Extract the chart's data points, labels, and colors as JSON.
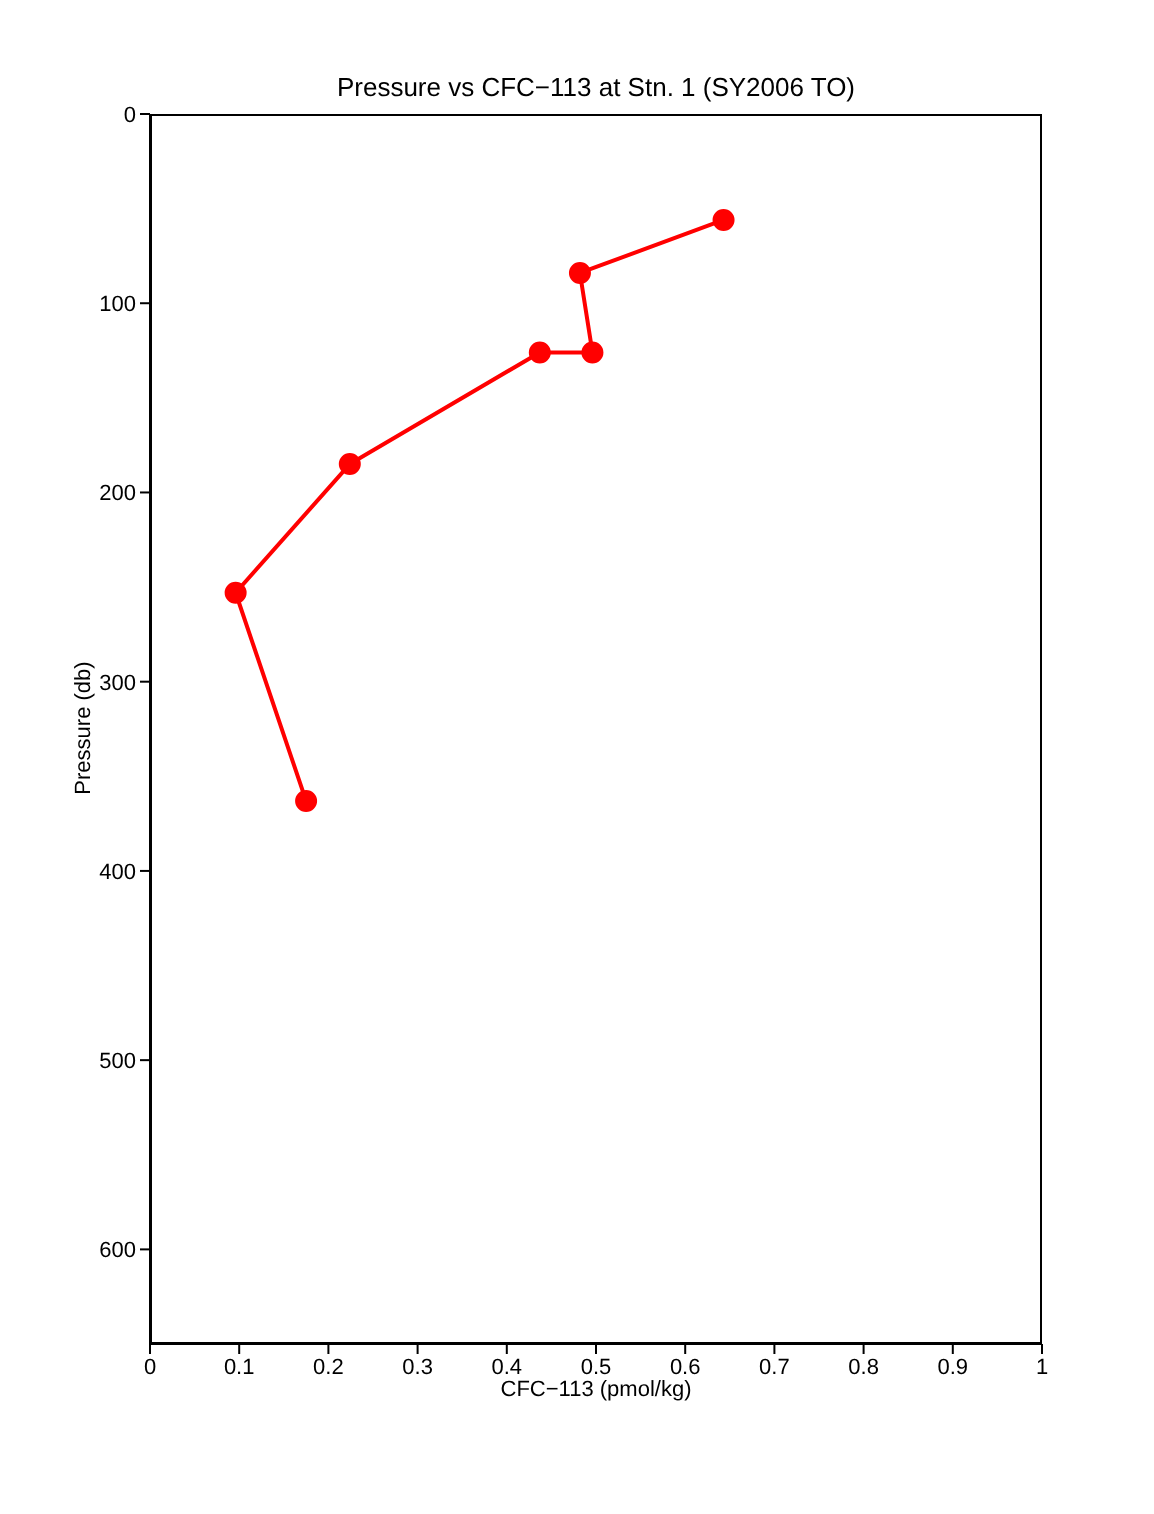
{
  "chart_data": {
    "type": "line",
    "title": "Pressure vs CFC−113 at Stn. 1 (SY2006 TO)",
    "xlabel": "CFC−113 (pmol/kg)",
    "ylabel": "Pressure (db)",
    "series": [
      {
        "color": "#ff0000",
        "x": [
          0.643,
          0.482,
          0.496,
          0.437,
          0.224,
          0.096,
          0.175
        ],
        "values": [
          56,
          84,
          126,
          126,
          185,
          253,
          363
        ]
      }
    ],
    "xlim": [
      0,
      1
    ],
    "xticks": [
      0,
      0.1,
      0.2,
      0.3,
      0.4,
      0.5,
      0.6,
      0.7,
      0.8,
      0.9,
      1
    ],
    "ylim": [
      650,
      0
    ],
    "yticks": [
      0,
      100,
      200,
      300,
      400,
      500,
      600
    ],
    "grid": false,
    "marker": "circle",
    "line_style": "solid"
  }
}
